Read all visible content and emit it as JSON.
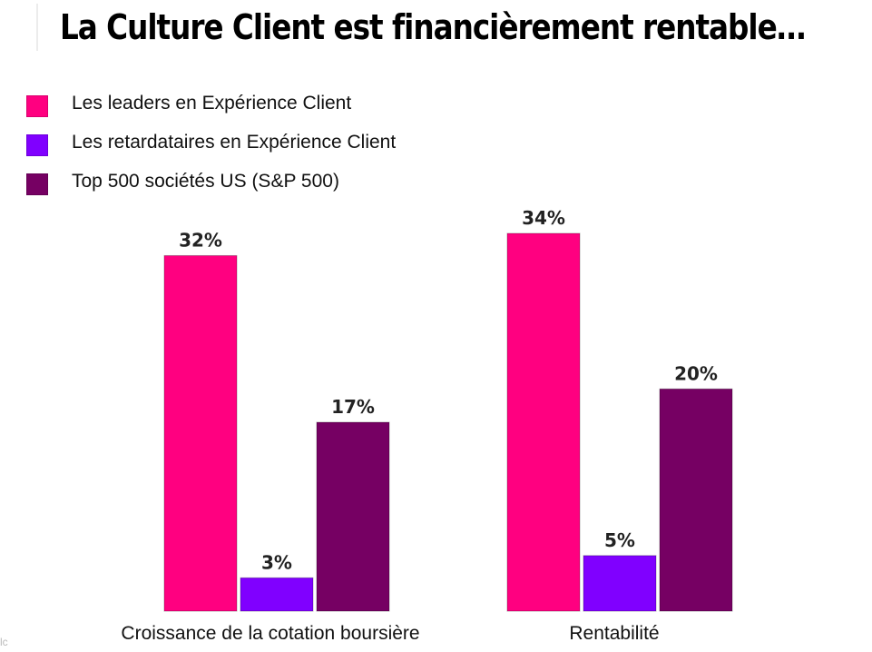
{
  "chart_data": {
    "type": "bar",
    "title": "La Culture Client est financièrement rentable…",
    "categories": [
      "Croissance de la cotation boursière",
      "Rentabilité"
    ],
    "series": [
      {
        "name": "Les leaders en Expérience Client",
        "values": [
          32,
          34
        ],
        "labels": [
          "32%",
          "34%"
        ],
        "color": "#ff0080"
      },
      {
        "name": "Les retardataires en Expérience Client",
        "values": [
          3,
          5
        ],
        "labels": [
          "3%",
          "5%"
        ],
        "color": "#8000ff"
      },
      {
        "name": "Top 500 sociétés US (S&P 500)",
        "values": [
          17,
          20
        ],
        "labels": [
          "17%",
          "20%"
        ],
        "color": "#760063"
      }
    ],
    "unit": "%",
    "ylim": [
      0,
      34
    ],
    "grid": false,
    "legend_position": "top-left",
    "value_labels": true
  }
}
